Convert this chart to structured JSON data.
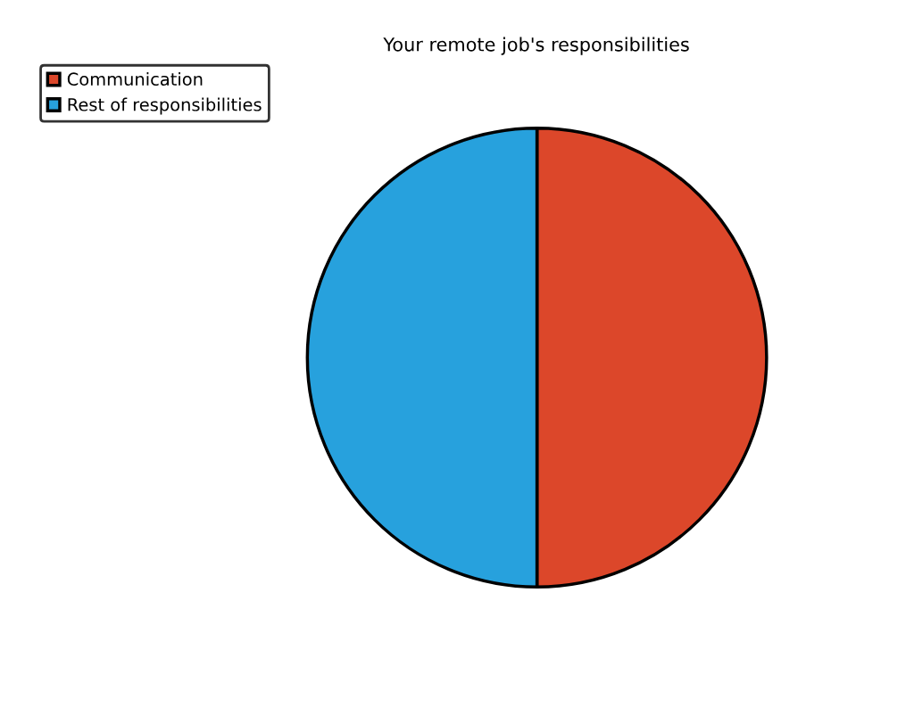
{
  "chart_data": {
    "type": "pie",
    "title": "Your remote job's responsibilities",
    "categories": [
      "Communication",
      "Rest of responsibilities"
    ],
    "values": [
      50,
      50
    ],
    "colors": [
      "#dc472a",
      "#27a1dd"
    ],
    "legend": "top left"
  }
}
